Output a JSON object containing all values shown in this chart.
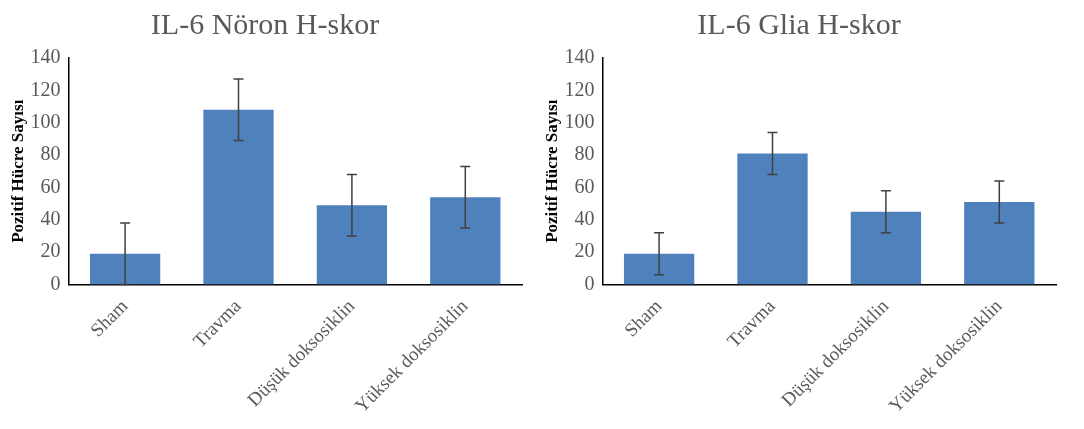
{
  "chart_data": [
    {
      "type": "bar",
      "title": "IL-6 Nöron H-skor",
      "ylabel": "Pozitif Hücre Sayısı",
      "categories": [
        "Sham",
        "Travma",
        "Düşük doksosiklin",
        "Yüksek doksosiklin"
      ],
      "values": [
        19,
        108,
        49,
        54
      ],
      "errors": [
        19,
        19,
        19,
        19
      ],
      "color": "#4f81bd",
      "ylim": [
        0,
        140
      ],
      "yticks": [
        0,
        20,
        40,
        60,
        80,
        100,
        120,
        140
      ],
      "grid": false
    },
    {
      "type": "bar",
      "title": "IL-6 Glia H-skor",
      "ylabel": "Pozitif Hücre Sayısı",
      "categories": [
        "Sham",
        "Travma",
        "Düşük doksosiklin",
        "Yüksek doksosiklin"
      ],
      "values": [
        19,
        81,
        45,
        51
      ],
      "errors": [
        13,
        13,
        13,
        13
      ],
      "color": "#4f81bd",
      "ylim": [
        0,
        140
      ],
      "yticks": [
        0,
        20,
        40,
        60,
        80,
        100,
        120,
        140
      ],
      "grid": false
    }
  ]
}
